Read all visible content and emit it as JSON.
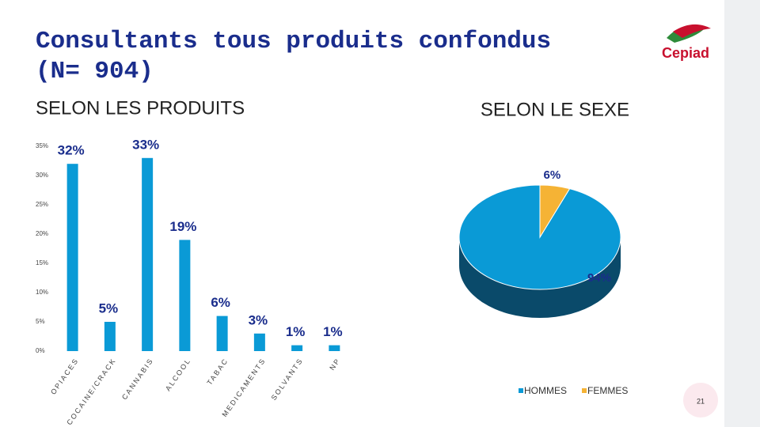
{
  "title": "Consultants tous produits confondus (N= 904)",
  "logo_text": "Cepiad",
  "page_number": "21",
  "chart_data": [
    {
      "type": "bar",
      "title": "SELON LES PRODUITS",
      "categories": [
        "OPIACES",
        "COCAINE/CRACK",
        "CANNABIS",
        "ALCOOL",
        "TABAC",
        "MEDICAMENTS",
        "SOLVANTS",
        "NP"
      ],
      "values": [
        32,
        5,
        33,
        19,
        6,
        3,
        1,
        1
      ],
      "value_labels": [
        "32%",
        "5%",
        "33%",
        "19%",
        "6%",
        "3%",
        "1%",
        "1%"
      ],
      "color": "#0a9ad6",
      "ylim": [
        0,
        35
      ],
      "yticks": [
        {
          "value": 0,
          "label": "0%"
        },
        {
          "value": 5,
          "label": "5%"
        },
        {
          "value": 10,
          "label": "10%"
        },
        {
          "value": 15,
          "label": "15%"
        },
        {
          "value": 20,
          "label": "20%"
        },
        {
          "value": 25,
          "label": "25%"
        },
        {
          "value": 30,
          "label": "30%"
        },
        {
          "value": 35,
          "label": "35%"
        }
      ]
    },
    {
      "type": "pie",
      "title": "SELON LE SEXE",
      "categories": [
        "HOMMES",
        "FEMMES"
      ],
      "values": [
        94,
        6
      ],
      "value_labels": [
        "94%",
        "6%"
      ],
      "colors": [
        "#0a9ad6",
        "#f5b335"
      ]
    }
  ]
}
